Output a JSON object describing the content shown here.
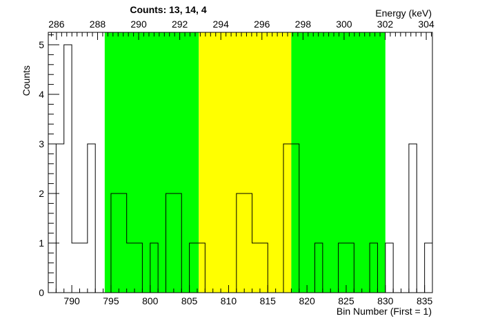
{
  "chart_data": {
    "type": "histogram",
    "title": "Counts:   13,   14,   4",
    "xlabel": "Bin Number (First = 1)",
    "ylabel": "Counts",
    "x2label": "Energy (keV)",
    "xlim": [
      787,
      836
    ],
    "ylim": [
      0,
      5.25
    ],
    "bin_start": 787,
    "bin_width": 1,
    "values": [
      0,
      3,
      5,
      1,
      1,
      3,
      0,
      0,
      2,
      2,
      1,
      1,
      0,
      1,
      0,
      2,
      2,
      0,
      1,
      1,
      0,
      0,
      0,
      0,
      2,
      2,
      1,
      1,
      0,
      0,
      3,
      3,
      0,
      0,
      1,
      0,
      0,
      1,
      1,
      0,
      0,
      1,
      0,
      1,
      0,
      0,
      3,
      0,
      1
    ],
    "x_ticks": [
      790,
      795,
      800,
      805,
      810,
      815,
      820,
      825,
      830,
      835
    ],
    "x_tick_labels": [
      "790",
      "795",
      "800",
      "805",
      "810",
      "815",
      "820",
      "825",
      "830",
      "835"
    ],
    "y_ticks": [
      0,
      1,
      2,
      3,
      4,
      5
    ],
    "y_tick_labels": [
      "0",
      "1",
      "2",
      "3",
      "4",
      "5"
    ],
    "energy_axis": {
      "range": [
        285.6,
        304.3
      ],
      "ticks": [
        286,
        288,
        290,
        292,
        294,
        296,
        298,
        300,
        302,
        304
      ],
      "tick_labels": [
        "286",
        "288",
        "290",
        "292",
        "294",
        "296",
        "298",
        "300",
        "302",
        "304"
      ]
    },
    "regions": [
      {
        "from": 794.2,
        "to": 806.2,
        "color": "#00ff00"
      },
      {
        "from": 806.2,
        "to": 818.0,
        "color": "#ffff00"
      },
      {
        "from": 818.0,
        "to": 830.0,
        "color": "#00ff00"
      }
    ],
    "grid": false
  }
}
